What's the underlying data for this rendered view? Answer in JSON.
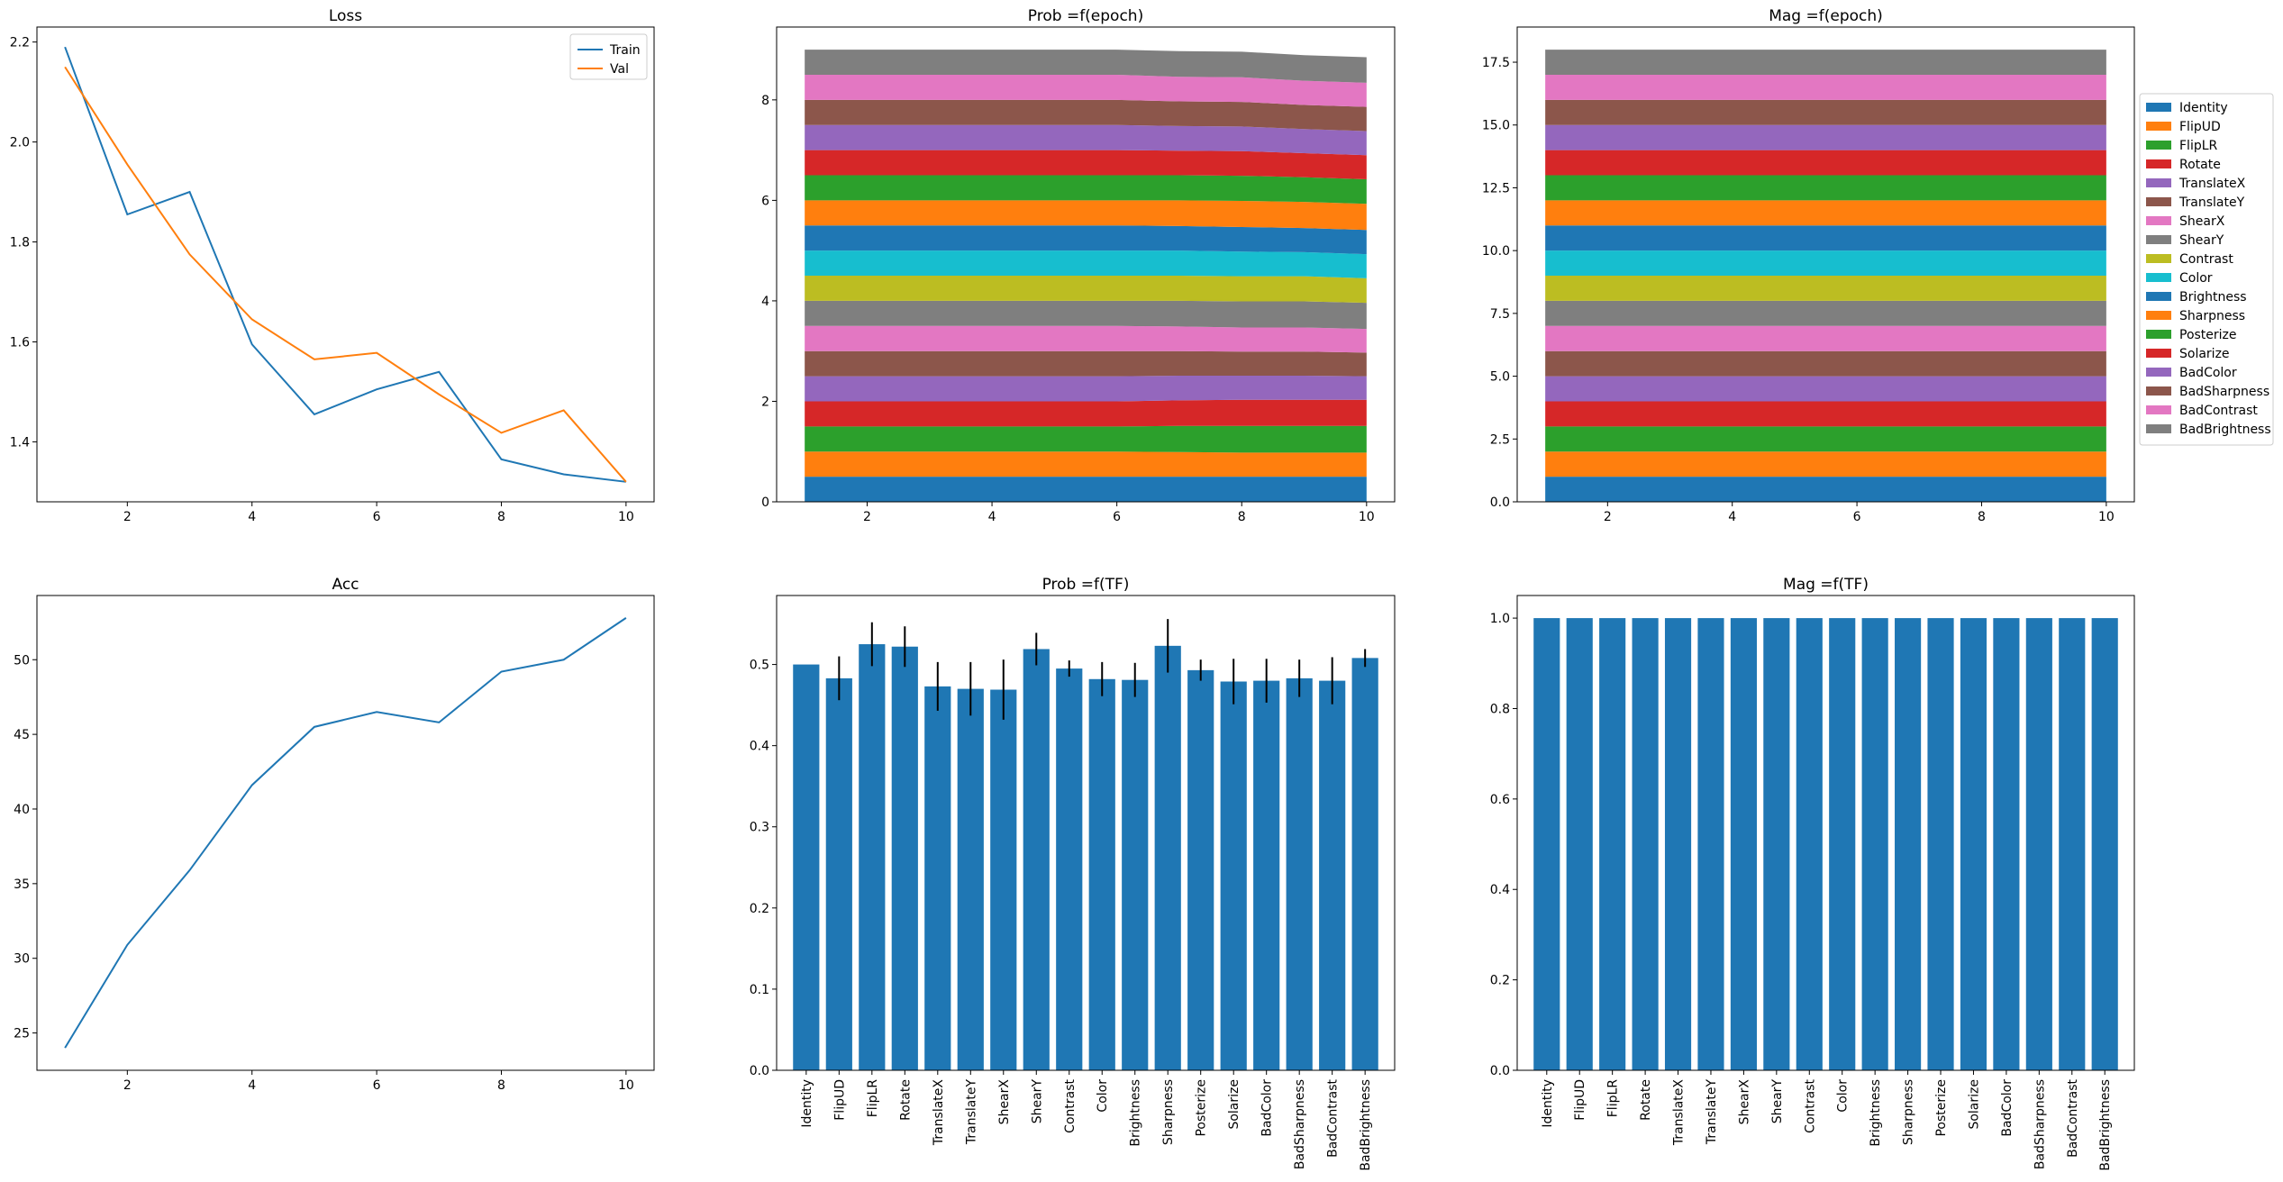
{
  "colors": {
    "palette": [
      "#1f77b4",
      "#ff7f0e",
      "#2ca02c",
      "#d62728",
      "#9467bd",
      "#8c564b",
      "#e377c2",
      "#7f7f7f",
      "#bcbd22",
      "#17becf"
    ],
    "axis": "#000000",
    "background": "#ffffff"
  },
  "chart_data": [
    {
      "id": "loss",
      "type": "line",
      "title": "Loss",
      "xlabel": "",
      "ylabel": "",
      "x": [
        1,
        2,
        3,
        4,
        5,
        6,
        7,
        8,
        9,
        10
      ],
      "xlim": [
        0.55,
        10.45
      ],
      "ylim": [
        1.28,
        2.23
      ],
      "xticks": [
        2,
        4,
        6,
        8,
        10
      ],
      "yticks": [
        1.4,
        1.6,
        1.8,
        2.0,
        2.2
      ],
      "ytick_labels": [
        "1.4",
        "1.6",
        "1.8",
        "2.0",
        "2.2"
      ],
      "grid": false,
      "legend": "upper right",
      "series": [
        {
          "name": "Train",
          "values": [
            2.19,
            1.855,
            1.9,
            1.595,
            1.455,
            1.505,
            1.54,
            1.365,
            1.335,
            1.32
          ]
        },
        {
          "name": "Val",
          "values": [
            2.15,
            1.955,
            1.775,
            1.645,
            1.565,
            1.578,
            1.495,
            1.418,
            1.463,
            1.32
          ]
        }
      ]
    },
    {
      "id": "prob_epoch",
      "type": "area",
      "stacked": true,
      "title": "Prob =f(epoch)",
      "xlabel": "",
      "ylabel": "",
      "x": [
        1,
        2,
        3,
        4,
        5,
        6,
        7,
        8,
        9,
        10
      ],
      "xlim": [
        0.55,
        10.45
      ],
      "ylim": [
        0,
        9.45
      ],
      "xticks": [
        2,
        4,
        6,
        8,
        10
      ],
      "yticks": [
        0,
        2,
        4,
        6,
        8
      ],
      "ytick_labels": [
        "0",
        "2",
        "4",
        "6",
        "8"
      ],
      "grid": false,
      "series": [
        {
          "name": "Identity",
          "values": [
            0.5,
            0.5,
            0.5,
            0.5,
            0.5,
            0.5,
            0.5,
            0.5,
            0.5,
            0.5
          ]
        },
        {
          "name": "FlipUD",
          "values": [
            0.5,
            0.5,
            0.5,
            0.5,
            0.5,
            0.5,
            0.49,
            0.48,
            0.48,
            0.48
          ]
        },
        {
          "name": "FlipLR",
          "values": [
            0.5,
            0.5,
            0.5,
            0.5,
            0.5,
            0.5,
            0.52,
            0.53,
            0.53,
            0.53
          ]
        },
        {
          "name": "Rotate",
          "values": [
            0.5,
            0.5,
            0.5,
            0.5,
            0.5,
            0.5,
            0.51,
            0.52,
            0.52,
            0.52
          ]
        },
        {
          "name": "TranslateX",
          "values": [
            0.5,
            0.5,
            0.5,
            0.5,
            0.5,
            0.5,
            0.49,
            0.48,
            0.48,
            0.47
          ]
        },
        {
          "name": "TranslateY",
          "values": [
            0.5,
            0.5,
            0.5,
            0.5,
            0.5,
            0.5,
            0.49,
            0.48,
            0.48,
            0.47
          ]
        },
        {
          "name": "ShearX",
          "values": [
            0.5,
            0.5,
            0.5,
            0.5,
            0.5,
            0.5,
            0.49,
            0.48,
            0.48,
            0.47
          ]
        },
        {
          "name": "ShearY",
          "values": [
            0.5,
            0.5,
            0.5,
            0.5,
            0.5,
            0.5,
            0.51,
            0.52,
            0.52,
            0.52
          ]
        },
        {
          "name": "Contrast",
          "values": [
            0.5,
            0.5,
            0.5,
            0.5,
            0.5,
            0.5,
            0.5,
            0.5,
            0.5,
            0.49
          ]
        },
        {
          "name": "Color",
          "values": [
            0.5,
            0.5,
            0.5,
            0.5,
            0.5,
            0.5,
            0.5,
            0.49,
            0.48,
            0.48
          ]
        },
        {
          "name": "Brightness",
          "values": [
            0.5,
            0.5,
            0.5,
            0.5,
            0.5,
            0.5,
            0.49,
            0.49,
            0.48,
            0.48
          ]
        },
        {
          "name": "Sharpness",
          "values": [
            0.5,
            0.5,
            0.5,
            0.5,
            0.5,
            0.5,
            0.51,
            0.52,
            0.52,
            0.52
          ]
        },
        {
          "name": "Posterize",
          "values": [
            0.5,
            0.5,
            0.5,
            0.5,
            0.5,
            0.5,
            0.5,
            0.5,
            0.49,
            0.49
          ]
        },
        {
          "name": "Solarize",
          "values": [
            0.5,
            0.5,
            0.5,
            0.5,
            0.5,
            0.5,
            0.49,
            0.49,
            0.48,
            0.48
          ]
        },
        {
          "name": "BadColor",
          "values": [
            0.5,
            0.5,
            0.5,
            0.5,
            0.5,
            0.5,
            0.49,
            0.49,
            0.48,
            0.48
          ]
        },
        {
          "name": "BadSharpness",
          "values": [
            0.5,
            0.5,
            0.5,
            0.5,
            0.5,
            0.5,
            0.49,
            0.49,
            0.48,
            0.48
          ]
        },
        {
          "name": "BadContrast",
          "values": [
            0.5,
            0.5,
            0.5,
            0.5,
            0.5,
            0.5,
            0.49,
            0.49,
            0.48,
            0.48
          ]
        },
        {
          "name": "BadBrightness",
          "values": [
            0.5,
            0.5,
            0.5,
            0.5,
            0.5,
            0.5,
            0.51,
            0.51,
            0.51,
            0.51
          ]
        }
      ]
    },
    {
      "id": "mag_epoch",
      "type": "area",
      "stacked": true,
      "title": "Mag =f(epoch)",
      "xlabel": "",
      "ylabel": "",
      "x": [
        1,
        2,
        3,
        4,
        5,
        6,
        7,
        8,
        9,
        10
      ],
      "xlim": [
        0.55,
        10.45
      ],
      "ylim": [
        0,
        18.9
      ],
      "xticks": [
        2,
        4,
        6,
        8,
        10
      ],
      "yticks": [
        0,
        2.5,
        5,
        7.5,
        10,
        12.5,
        15,
        17.5
      ],
      "ytick_labels": [
        "0.0",
        "2.5",
        "5.0",
        "7.5",
        "10.0",
        "12.5",
        "15.0",
        "17.5"
      ],
      "grid": false,
      "legend": "center left, outside right",
      "series": [
        {
          "name": "Identity",
          "values": [
            1,
            1,
            1,
            1,
            1,
            1,
            1,
            1,
            1,
            1
          ]
        },
        {
          "name": "FlipUD",
          "values": [
            1,
            1,
            1,
            1,
            1,
            1,
            1,
            1,
            1,
            1
          ]
        },
        {
          "name": "FlipLR",
          "values": [
            1,
            1,
            1,
            1,
            1,
            1,
            1,
            1,
            1,
            1
          ]
        },
        {
          "name": "Rotate",
          "values": [
            1,
            1,
            1,
            1,
            1,
            1,
            1,
            1,
            1,
            1
          ]
        },
        {
          "name": "TranslateX",
          "values": [
            1,
            1,
            1,
            1,
            1,
            1,
            1,
            1,
            1,
            1
          ]
        },
        {
          "name": "TranslateY",
          "values": [
            1,
            1,
            1,
            1,
            1,
            1,
            1,
            1,
            1,
            1
          ]
        },
        {
          "name": "ShearX",
          "values": [
            1,
            1,
            1,
            1,
            1,
            1,
            1,
            1,
            1,
            1
          ]
        },
        {
          "name": "ShearY",
          "values": [
            1,
            1,
            1,
            1,
            1,
            1,
            1,
            1,
            1,
            1
          ]
        },
        {
          "name": "Contrast",
          "values": [
            1,
            1,
            1,
            1,
            1,
            1,
            1,
            1,
            1,
            1
          ]
        },
        {
          "name": "Color",
          "values": [
            1,
            1,
            1,
            1,
            1,
            1,
            1,
            1,
            1,
            1
          ]
        },
        {
          "name": "Brightness",
          "values": [
            1,
            1,
            1,
            1,
            1,
            1,
            1,
            1,
            1,
            1
          ]
        },
        {
          "name": "Sharpness",
          "values": [
            1,
            1,
            1,
            1,
            1,
            1,
            1,
            1,
            1,
            1
          ]
        },
        {
          "name": "Posterize",
          "values": [
            1,
            1,
            1,
            1,
            1,
            1,
            1,
            1,
            1,
            1
          ]
        },
        {
          "name": "Solarize",
          "values": [
            1,
            1,
            1,
            1,
            1,
            1,
            1,
            1,
            1,
            1
          ]
        },
        {
          "name": "BadColor",
          "values": [
            1,
            1,
            1,
            1,
            1,
            1,
            1,
            1,
            1,
            1
          ]
        },
        {
          "name": "BadSharpness",
          "values": [
            1,
            1,
            1,
            1,
            1,
            1,
            1,
            1,
            1,
            1
          ]
        },
        {
          "name": "BadContrast",
          "values": [
            1,
            1,
            1,
            1,
            1,
            1,
            1,
            1,
            1,
            1
          ]
        },
        {
          "name": "BadBrightness",
          "values": [
            1,
            1,
            1,
            1,
            1,
            1,
            1,
            1,
            1,
            1
          ]
        }
      ]
    },
    {
      "id": "acc",
      "type": "line",
      "title": "Acc",
      "xlabel": "",
      "ylabel": "",
      "x": [
        1,
        2,
        3,
        4,
        5,
        6,
        7,
        8,
        9,
        10
      ],
      "xlim": [
        0.55,
        10.45
      ],
      "ylim": [
        22.5,
        54.3
      ],
      "xticks": [
        2,
        4,
        6,
        8,
        10
      ],
      "yticks": [
        25,
        30,
        35,
        40,
        45,
        50
      ],
      "ytick_labels": [
        "25",
        "30",
        "35",
        "40",
        "45",
        "50"
      ],
      "grid": false,
      "series": [
        {
          "values": [
            24.0,
            30.9,
            35.9,
            41.6,
            45.5,
            46.5,
            45.8,
            49.2,
            50.0,
            52.8
          ]
        }
      ]
    },
    {
      "id": "prob_tf",
      "type": "bar",
      "title": "Prob =f(TF)",
      "xlabel": "",
      "ylabel": "",
      "categories": [
        "Identity",
        "FlipUD",
        "FlipLR",
        "Rotate",
        "TranslateX",
        "TranslateY",
        "ShearX",
        "ShearY",
        "Contrast",
        "Color",
        "Brightness",
        "Sharpness",
        "Posterize",
        "Solarize",
        "BadColor",
        "BadSharpness",
        "BadContrast",
        "BadBrightness"
      ],
      "values": [
        0.5,
        0.483,
        0.525,
        0.522,
        0.473,
        0.47,
        0.469,
        0.519,
        0.495,
        0.482,
        0.481,
        0.523,
        0.493,
        0.479,
        0.48,
        0.483,
        0.48,
        0.508
      ],
      "errors": [
        0.0,
        0.027,
        0.027,
        0.025,
        0.03,
        0.033,
        0.037,
        0.02,
        0.01,
        0.021,
        0.021,
        0.033,
        0.013,
        0.028,
        0.027,
        0.023,
        0.029,
        0.011
      ],
      "ylim": [
        0,
        0.585
      ],
      "yticks": [
        0,
        0.1,
        0.2,
        0.3,
        0.4,
        0.5
      ],
      "ytick_labels": [
        "0.0",
        "0.1",
        "0.2",
        "0.3",
        "0.4",
        "0.5"
      ],
      "grid": false
    },
    {
      "id": "mag_tf",
      "type": "bar",
      "title": "Mag =f(TF)",
      "xlabel": "",
      "ylabel": "",
      "categories": [
        "Identity",
        "FlipUD",
        "FlipLR",
        "Rotate",
        "TranslateX",
        "TranslateY",
        "ShearX",
        "ShearY",
        "Contrast",
        "Color",
        "Brightness",
        "Sharpness",
        "Posterize",
        "Solarize",
        "BadColor",
        "BadSharpness",
        "BadContrast",
        "BadBrightness"
      ],
      "values": [
        1,
        1,
        1,
        1,
        1,
        1,
        1,
        1,
        1,
        1,
        1,
        1,
        1,
        1,
        1,
        1,
        1,
        1
      ],
      "ylim": [
        0,
        1.05
      ],
      "yticks": [
        0,
        0.2,
        0.4,
        0.6,
        0.8,
        1.0
      ],
      "ytick_labels": [
        "0.0",
        "0.2",
        "0.4",
        "0.6",
        "0.8",
        "1.0"
      ],
      "grid": false
    }
  ]
}
